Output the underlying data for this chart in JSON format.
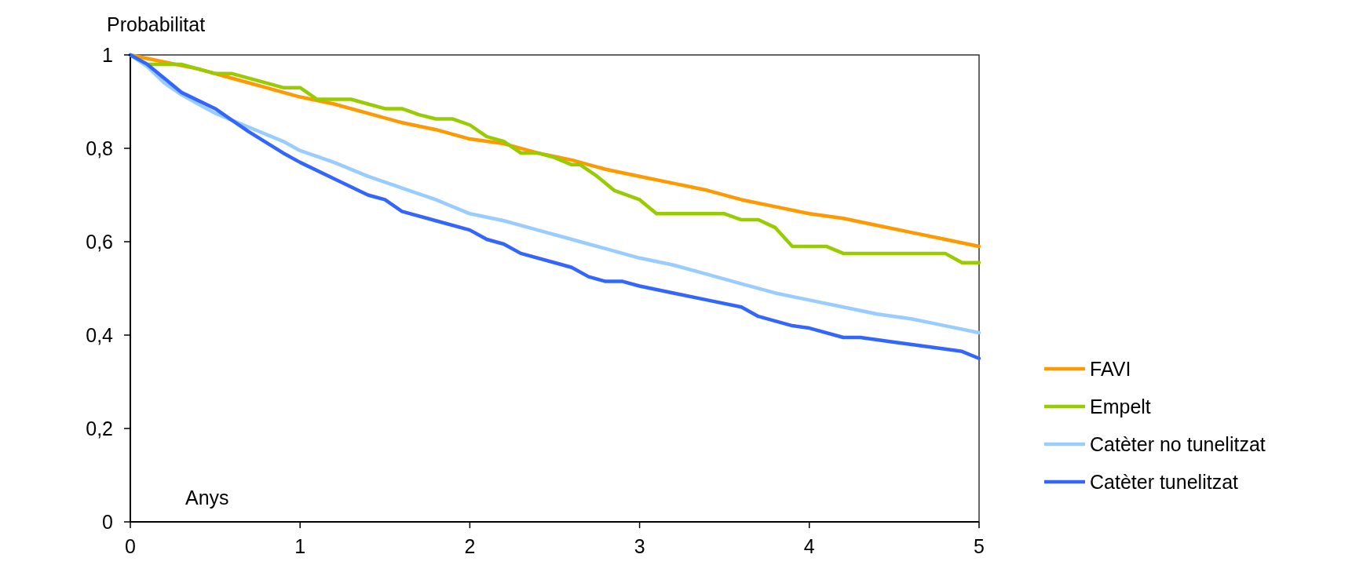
{
  "chart_data": {
    "type": "line",
    "ylabel": "Probabilitat",
    "xlabel": "Anys",
    "xlim": [
      0,
      5
    ],
    "xticks": [
      0,
      1,
      2,
      3,
      4,
      5
    ],
    "ylim": [
      0,
      1
    ],
    "yticks": [
      0,
      {
        "value": 0.2,
        "label": "0,2"
      },
      {
        "value": 0.4,
        "label": "0,4"
      },
      {
        "value": 0.6,
        "label": "0,6"
      },
      {
        "value": 0.8,
        "label": "0,8"
      },
      1
    ],
    "grid": false,
    "legend": "right",
    "marker": "none",
    "line_style": "solid",
    "series": [
      {
        "name": "FAVI",
        "color": "#ff9900",
        "x": [
          0,
          0.2,
          0.4,
          0.6,
          0.8,
          1,
          1.2,
          1.4,
          1.6,
          1.8,
          2,
          2.2,
          2.4,
          2.6,
          2.8,
          3,
          3.2,
          3.4,
          3.6,
          3.8,
          4,
          4.2,
          4.4,
          4.6,
          4.8,
          5
        ],
        "values": [
          1,
          0.985,
          0.97,
          0.95,
          0.93,
          0.91,
          0.895,
          0.875,
          0.855,
          0.84,
          0.82,
          0.81,
          0.79,
          0.775,
          0.755,
          0.74,
          0.725,
          0.71,
          0.69,
          0.675,
          0.66,
          0.65,
          0.635,
          0.62,
          0.605,
          0.59
        ]
      },
      {
        "name": "Empelt",
        "color": "#99cc00",
        "x": [
          0,
          0.1,
          0.3,
          0.4,
          0.5,
          0.6,
          0.8,
          0.9,
          1,
          1.1,
          1.3,
          1.4,
          1.5,
          1.6,
          1.7,
          1.8,
          1.9,
          2,
          2.1,
          2.2,
          2.3,
          2.4,
          2.5,
          2.6,
          2.65,
          2.75,
          2.85,
          3,
          3.1,
          3.5,
          3.6,
          3.7,
          3.8,
          3.9,
          4.1,
          4.2,
          4.8,
          4.9,
          5
        ],
        "values": [
          1,
          0.98,
          0.98,
          0.97,
          0.96,
          0.96,
          0.94,
          0.93,
          0.93,
          0.905,
          0.905,
          0.895,
          0.885,
          0.885,
          0.872,
          0.863,
          0.863,
          0.85,
          0.825,
          0.815,
          0.79,
          0.79,
          0.78,
          0.765,
          0.765,
          0.74,
          0.71,
          0.69,
          0.66,
          0.66,
          0.647,
          0.647,
          0.63,
          0.59,
          0.59,
          0.575,
          0.575,
          0.555,
          0.555
        ]
      },
      {
        "name": "Catèter no tunelitzat",
        "color": "#99ccff",
        "x": [
          0,
          0.1,
          0.2,
          0.3,
          0.5,
          0.7,
          0.9,
          1,
          1.2,
          1.4,
          1.6,
          1.8,
          2,
          2.2,
          2.4,
          2.6,
          2.8,
          3,
          3.2,
          3.4,
          3.6,
          3.8,
          4,
          4.2,
          4.4,
          4.6,
          4.8,
          5
        ],
        "values": [
          1,
          0.975,
          0.94,
          0.915,
          0.875,
          0.845,
          0.815,
          0.795,
          0.77,
          0.74,
          0.715,
          0.69,
          0.66,
          0.645,
          0.625,
          0.605,
          0.585,
          0.565,
          0.55,
          0.53,
          0.51,
          0.49,
          0.475,
          0.46,
          0.445,
          0.435,
          0.42,
          0.405
        ]
      },
      {
        "name": "Catèter tunelitzat",
        "color": "#3366ff",
        "x": [
          0,
          0.1,
          0.2,
          0.3,
          0.5,
          0.6,
          0.7,
          0.9,
          1,
          1.2,
          1.4,
          1.5,
          1.6,
          1.8,
          2,
          2.1,
          2.2,
          2.3,
          2.5,
          2.6,
          2.7,
          2.8,
          2.9,
          3,
          3.2,
          3.4,
          3.6,
          3.7,
          3.8,
          3.9,
          4,
          4.2,
          4.3,
          4.5,
          4.8,
          4.9,
          5
        ],
        "values": [
          1,
          0.98,
          0.95,
          0.92,
          0.885,
          0.86,
          0.835,
          0.79,
          0.77,
          0.735,
          0.7,
          0.69,
          0.665,
          0.645,
          0.625,
          0.605,
          0.595,
          0.575,
          0.555,
          0.545,
          0.525,
          0.515,
          0.515,
          0.505,
          0.49,
          0.475,
          0.46,
          0.44,
          0.43,
          0.42,
          0.415,
          0.395,
          0.395,
          0.385,
          0.37,
          0.365,
          0.35
        ]
      }
    ]
  }
}
